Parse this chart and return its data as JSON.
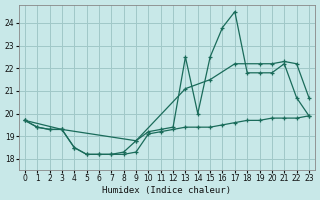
{
  "xlabel": "Humidex (Indice chaleur)",
  "bg_color": "#c8e8e8",
  "grid_color": "#a0c8c8",
  "line_color": "#1a6b5a",
  "xlim": [
    -0.5,
    23.5
  ],
  "ylim": [
    17.5,
    24.8
  ],
  "xticks": [
    0,
    1,
    2,
    3,
    4,
    5,
    6,
    7,
    8,
    9,
    10,
    11,
    12,
    13,
    14,
    15,
    16,
    17,
    18,
    19,
    20,
    21,
    22,
    23
  ],
  "yticks": [
    18,
    19,
    20,
    21,
    22,
    23,
    24
  ],
  "line_A_x": [
    0,
    1,
    2,
    3,
    4,
    5,
    6,
    7,
    8,
    9,
    10,
    11,
    12,
    13,
    14,
    15,
    16,
    17,
    18,
    19,
    20,
    21,
    22,
    23
  ],
  "line_A_y": [
    19.7,
    19.4,
    19.3,
    19.3,
    18.5,
    18.2,
    18.2,
    18.2,
    18.2,
    18.3,
    19.1,
    19.2,
    19.3,
    19.4,
    19.4,
    19.4,
    19.5,
    19.6,
    19.7,
    19.7,
    19.8,
    19.8,
    19.8,
    19.9
  ],
  "line_B_x": [
    0,
    1,
    2,
    3,
    4,
    5,
    6,
    7,
    8,
    9,
    10,
    11,
    12,
    13,
    14,
    15,
    16,
    17,
    18,
    19,
    20,
    21,
    22,
    23
  ],
  "line_B_y": [
    19.7,
    19.4,
    19.3,
    19.3,
    18.5,
    18.2,
    18.2,
    18.2,
    18.3,
    18.8,
    19.2,
    19.3,
    19.4,
    22.5,
    20.0,
    22.5,
    23.8,
    24.5,
    21.8,
    21.8,
    21.8,
    22.2,
    20.7,
    19.9
  ],
  "line_C_x": [
    0,
    3,
    9,
    13,
    15,
    17,
    19,
    20,
    21,
    22,
    23
  ],
  "line_C_y": [
    19.7,
    19.3,
    18.8,
    21.1,
    21.5,
    22.2,
    22.2,
    22.2,
    22.3,
    22.2,
    20.7
  ]
}
